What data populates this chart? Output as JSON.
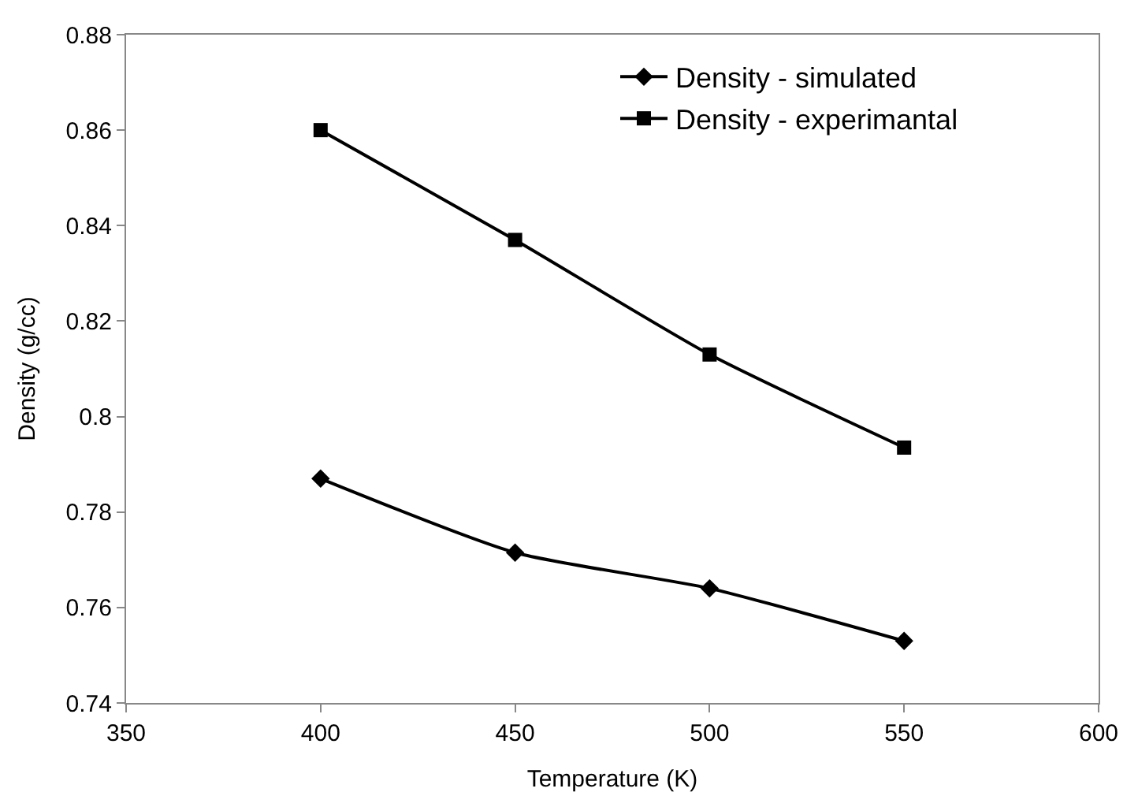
{
  "chart_data": {
    "type": "line",
    "xlabel": "Temperature (K)",
    "ylabel": "Density (g/cc)",
    "x": [
      400,
      450,
      500,
      550
    ],
    "series": [
      {
        "name": "Density - simulated",
        "color": "#000000",
        "marker": "diamond",
        "values": [
          0.787,
          0.7715,
          0.764,
          0.753
        ]
      },
      {
        "name": "Density - experimantal",
        "color": "#000000",
        "marker": "square",
        "values": [
          0.86,
          0.837,
          0.813,
          0.7935
        ]
      }
    ],
    "xlim": [
      350,
      600
    ],
    "xticks": [
      350,
      400,
      450,
      500,
      550,
      600
    ],
    "ylim": [
      0.74,
      0.88
    ],
    "yticks": [
      0.74,
      0.76,
      0.78,
      0.8,
      0.82,
      0.84,
      0.86,
      0.88
    ],
    "legend": "top right",
    "line_style": "solid"
  }
}
